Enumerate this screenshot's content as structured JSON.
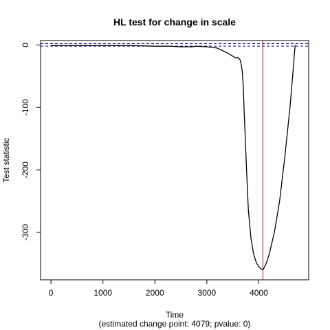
{
  "chart_data": {
    "type": "line",
    "title": "HL test for change in scale",
    "xlabel": "Time",
    "xlabel_sub": "(estimated change point: 4079; pvalue: 0)",
    "ylabel": "Test statistic",
    "xlim": [
      -200,
      4960
    ],
    "ylim": [
      -376,
      7
    ],
    "x_ticks": [
      0,
      1000,
      2000,
      3000,
      4000
    ],
    "y_ticks": [
      0,
      -100,
      -200,
      -300
    ],
    "x_tick_labels": [
      "0",
      "1000",
      "2000",
      "3000",
      "4000"
    ],
    "y_tick_labels": [
      "0",
      "-100",
      "-200",
      "-300"
    ],
    "grid": false,
    "change_point": 4079,
    "change_point_color": "#cc0000",
    "critical_lines": [
      -2,
      2
    ],
    "critical_line_color": "#00008b",
    "line_color": "#000000",
    "series": [
      {
        "x": [
          0,
          500,
          1000,
          1500,
          1800,
          2000,
          2300,
          2500,
          2700,
          2800,
          3000,
          3200,
          3300,
          3400,
          3500,
          3550,
          3600,
          3640,
          3660,
          3680,
          3700,
          3720,
          3750,
          3780,
          3800,
          3850,
          3900,
          3950,
          4000,
          4050,
          4079,
          4100,
          4150,
          4200,
          4300,
          4400,
          4500,
          4600,
          4650,
          4680,
          4700
        ],
        "y": [
          -1,
          -1,
          -1,
          -1,
          -1.5,
          -2,
          -2,
          -3,
          -3,
          -2,
          -3,
          -5,
          -9,
          -13,
          -18,
          -21,
          -20,
          -24,
          -30,
          -42,
          -65,
          -110,
          -170,
          -230,
          -265,
          -310,
          -335,
          -348,
          -355,
          -359,
          -360,
          -357,
          -348,
          -335,
          -300,
          -250,
          -180,
          -100,
          -50,
          -20,
          0
        ]
      }
    ]
  }
}
